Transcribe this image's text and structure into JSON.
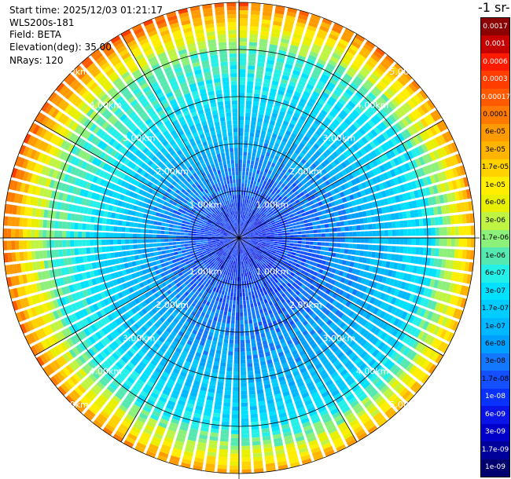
{
  "header": {
    "start_time": "Start time: 2025/12/03 01:21:17",
    "instrument": "WLS200s-181",
    "field": "Field: BETA",
    "elevation": "Elevation(deg): 35.00",
    "nrays": "NRays: 120"
  },
  "colorbar": {
    "units_label": "-1 sr-",
    "labels": [
      "0.0017",
      "0.001",
      "0.0006",
      "0.0003",
      "0.00017",
      "0.0001",
      "6e-05",
      "3e-05",
      "1.7e-05",
      "1e-05",
      "6e-06",
      "3e-06",
      "1.7e-06",
      "1e-06",
      "6e-07",
      "3e-07",
      "1.7e-07",
      "1e-07",
      "6e-08",
      "3e-08",
      "1.7e-08",
      "1e-08",
      "6e-09",
      "3e-09",
      "1.7e-09",
      "1e-09"
    ],
    "colors": [
      "#8b0000",
      "#c40000",
      "#ff1a00",
      "#ff3d00",
      "#ff5a00",
      "#ff7a00",
      "#ff9a00",
      "#ffb400",
      "#ffd200",
      "#ffee00",
      "#e8f000",
      "#bff542",
      "#8cf07a",
      "#55e8b0",
      "#24f0e8",
      "#00e0ff",
      "#00ccff",
      "#00b8ff",
      "#00a0ff",
      "#1478ff",
      "#1450ff",
      "#0a32ff",
      "#0a14e6",
      "#0000c8",
      "#00009b",
      "#00006e"
    ]
  },
  "chart_data": {
    "type": "ppi",
    "title": "",
    "n_rays": 120,
    "elevation_deg": 35.0,
    "max_range_km": 5.0,
    "range_rings_km": [
      1,
      2,
      3,
      4,
      5
    ],
    "ring_labels": [
      "1.00km",
      "2.00km",
      "3.00km",
      "4.00km",
      "5.00km"
    ],
    "profile": {
      "range_km": [
        0.0,
        0.5,
        1.0,
        1.5,
        2.0,
        2.5,
        3.0,
        3.5,
        4.0,
        4.25,
        4.5,
        4.75,
        5.0
      ],
      "color_index": [
        21,
        21,
        20,
        19,
        18,
        17,
        16,
        15,
        14,
        12,
        10,
        8,
        5
      ],
      "note_sectors": "higher values toward south-east and north-west, lower toward north-east"
    }
  }
}
